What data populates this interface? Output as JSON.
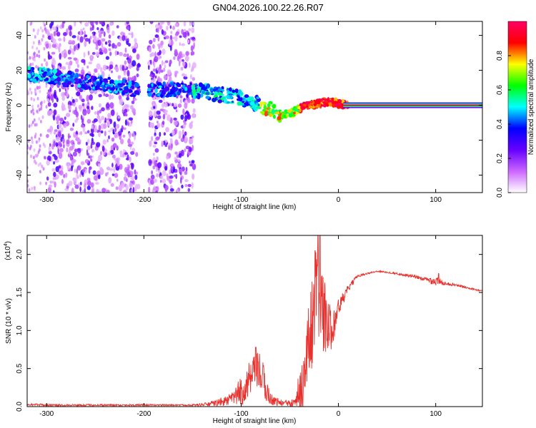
{
  "title": "GN04.2026.100.22.26.R07",
  "chart_data": [
    {
      "id": "spectrogram",
      "type": "heatmap",
      "xlabel": "Height of straight line (km)",
      "ylabel": "Frequency (Hz)",
      "xlim": [
        -320,
        148
      ],
      "ylim": [
        -50,
        48
      ],
      "xticks": [
        -300,
        -200,
        -100,
        0,
        100
      ],
      "yticks": [
        -40,
        -20,
        0,
        20,
        40
      ],
      "xtick_labels": [
        "-300",
        "-200",
        "-100",
        "0",
        "100"
      ],
      "ytick_labels": [
        "-40",
        "-20",
        "0",
        "20",
        "40"
      ],
      "ridge": {
        "x": [
          -320,
          -300,
          -280,
          -250,
          -220,
          -200,
          -180,
          -150,
          -140,
          -120,
          -100,
          -80,
          -60,
          -50,
          -40,
          -30,
          -20,
          -10,
          0,
          10,
          148
        ],
        "y": [
          18,
          17,
          15,
          13,
          10,
          8,
          9,
          9,
          8,
          6,
          4,
          0,
          -5,
          -5,
          -2,
          0,
          1,
          2,
          1,
          0,
          0
        ]
      },
      "noise_band_x": [
        -300,
        -148
      ],
      "noise_gap_x": [
        -205,
        -195
      ],
      "flat_line": {
        "x_start": 5,
        "x_end": 148,
        "y": 0
      },
      "colorbar": {
        "label": "Normalized spectral amplitude",
        "range": [
          0,
          1
        ],
        "ticks": [
          0.0,
          0.2,
          0.4,
          0.6,
          0.8
        ],
        "tick_labels": [
          "0.0",
          "0.2",
          "0.4",
          "0.6",
          "0.8"
        ],
        "colors": [
          "#ffffff",
          "#cc66ff",
          "#6600ff",
          "#0000ff",
          "#00ffff",
          "#00ff00",
          "#ffff00",
          "#ff0000",
          "#ff0066"
        ]
      }
    },
    {
      "id": "snr",
      "type": "line",
      "xlabel": "Height of straight line (km)",
      "ylabel": "SNR (10 * v/v)",
      "y_multiplier": "(x10",
      "y_multiplier_exp": "4",
      "y_multiplier_close": ")",
      "xlim": [
        -320,
        148
      ],
      "ylim": [
        0,
        2.25
      ],
      "xticks": [
        -300,
        -200,
        -100,
        0,
        100
      ],
      "yticks": [
        0.0,
        0.5,
        1.0,
        1.5,
        2.0
      ],
      "xtick_labels": [
        "-300",
        "-200",
        "-100",
        "0",
        "100"
      ],
      "ytick_labels": [
        "0.0",
        "0.5",
        "1.0",
        "1.5",
        "2.0"
      ],
      "color": "#e8312d",
      "envelope": {
        "x": [
          -320,
          -300,
          -200,
          -150,
          -135,
          -120,
          -110,
          -100,
          -90,
          -80,
          -75,
          -70,
          -60,
          -50,
          -40,
          -35,
          -30,
          -25,
          -22,
          -20,
          -15,
          -10,
          -5,
          0,
          10,
          20,
          30,
          40,
          60,
          80,
          90,
          100,
          110,
          120,
          148
        ],
        "y": [
          0.03,
          0.02,
          0.02,
          0.02,
          0.03,
          0.06,
          0.1,
          0.2,
          0.35,
          0.45,
          0.25,
          0.1,
          0.05,
          0.05,
          0.2,
          0.4,
          0.9,
          1.3,
          1.6,
          1.5,
          1.2,
          1.0,
          1.1,
          1.3,
          1.55,
          1.72,
          1.75,
          1.78,
          1.75,
          1.7,
          1.67,
          1.65,
          1.62,
          1.6,
          1.52
        ]
      },
      "noise": {
        "x": [
          -320,
          -150,
          -130,
          -110,
          -95,
          -80,
          -70,
          -55,
          -45,
          -35,
          -25,
          -20,
          -15,
          -10,
          -5,
          0,
          10,
          20,
          30,
          50,
          90,
          100,
          110,
          148
        ],
        "y": [
          0.015,
          0.01,
          0.03,
          0.08,
          0.25,
          0.3,
          0.08,
          0.03,
          0.12,
          0.4,
          0.7,
          0.6,
          0.5,
          0.35,
          0.25,
          0.12,
          0.05,
          0.02,
          0.01,
          0.01,
          0.03,
          0.07,
          0.02,
          0.01
        ]
      },
      "spikes": [
        {
          "x": -24,
          "y": 2.05
        },
        {
          "x": -21,
          "y": 2.3
        },
        {
          "x": -19,
          "y": 2.3
        },
        {
          "x": -85,
          "y": 0.78
        },
        {
          "x": 103,
          "y": 1.75
        }
      ]
    }
  ]
}
